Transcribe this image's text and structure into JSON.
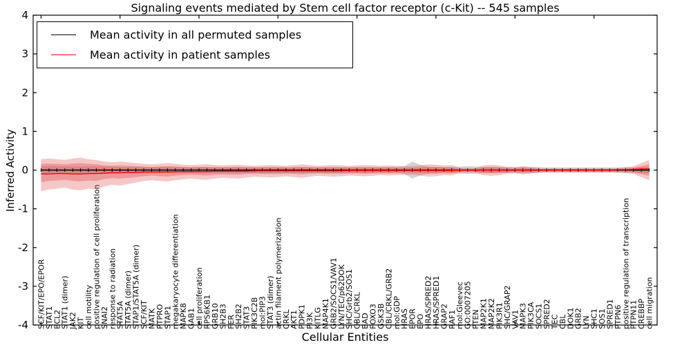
{
  "chart_data": {
    "type": "line",
    "title": "Signaling events mediated by Stem cell factor receptor (c-Kit) -- 545 samples",
    "xlabel": "Cellular Entities",
    "ylabel": "Inferred Activity",
    "ylim": [
      -4,
      4
    ],
    "yticks": [
      4,
      3,
      2,
      1,
      0,
      -1,
      -2,
      -3,
      -4
    ],
    "grid": false,
    "legend_position": "upper-left",
    "legend": [
      {
        "label": "Mean activity in all permuted samples",
        "color": "#000000"
      },
      {
        "label": "Mean activity in patient samples",
        "color": "#ff0000"
      }
    ],
    "categories": [
      "SCF/KIT/EPO/EPOR",
      "STAT1",
      "BCL2",
      "STAT1 (dimer)",
      "JAK2",
      "KIT",
      "cell motility",
      "positive regulation of cell proliferation",
      "SNAI2",
      "response to radiation",
      "STAT5A",
      "STAT5A (dimer)",
      "STAP1/STAT5A (dimer)",
      "SCF/KIT",
      "MATK",
      "PTPRO",
      "STAP1",
      "megakaryocyte differentiation",
      "MAPK8",
      "GAB1",
      "cell proliferation",
      "RPS6KB1",
      "GRB10",
      "SH2B3",
      "FER",
      "SH2B2",
      "STAT3",
      "PIK3C2B",
      "mol:PIP3",
      "STAT3 (dimer)",
      "actin filament polymerization",
      "CRKL",
      "AKT1",
      "PDPK1",
      "PI3K",
      "KITLG",
      "MAP4K1",
      "GRB2/SOCS1/VAV1",
      "LYN/TEC/p62DOK",
      "SHC/Grb2/SOS1",
      "CBL/CRKL",
      "BAD",
      "FOXO3",
      "GSK3B",
      "CBL/CRKL/GRB2",
      "mol:GDP",
      "HRAS",
      "EPOR",
      "EPO",
      "HRAS/SPRED2",
      "HRAS/SPRED1",
      "GRAP2",
      "RAF1",
      "mol:Gleevec",
      "GO:0007205",
      "PTEN",
      "MAP2K1",
      "MAP2K2",
      "PIK3R1",
      "SHC/GRAP2",
      "VAV1",
      "MAPK3",
      "PIK3CA",
      "SOCS1",
      "SPRED2",
      "TEC",
      "CBL",
      "DOK1",
      "GRB2",
      "LYN",
      "SHC1",
      "SOS1",
      "SPRED1",
      "PTPN6",
      "positive regulation of transcription",
      "PTPN11",
      "CREBBP",
      "cell migration"
    ],
    "series": [
      {
        "name": "Mean activity in all permuted samples",
        "color": "#000000",
        "marker": "plus",
        "values": [
          0,
          0,
          0,
          0,
          0,
          0,
          0,
          0,
          0,
          0,
          0,
          0,
          0,
          0,
          0,
          0,
          0,
          0,
          0,
          0,
          0,
          0,
          0,
          0,
          0,
          0,
          0,
          0,
          0,
          0,
          0,
          0,
          0,
          0,
          0,
          0,
          0,
          0,
          0,
          0,
          0,
          0,
          0,
          0,
          0,
          0,
          0,
          0,
          0,
          0,
          0,
          0,
          0,
          0,
          0,
          0,
          0,
          0,
          0,
          0,
          0,
          0,
          0,
          0,
          0,
          0,
          0,
          0,
          0,
          0,
          0,
          0,
          0,
          0,
          0,
          0,
          0,
          0
        ]
      },
      {
        "name": "Mean activity in patient samples",
        "color": "#ff0000",
        "marker": "none",
        "values": [
          -0.1,
          -0.1,
          -0.09,
          -0.09,
          -0.1,
          -0.1,
          -0.09,
          -0.09,
          -0.08,
          -0.07,
          -0.07,
          -0.06,
          -0.06,
          -0.05,
          -0.05,
          -0.05,
          -0.05,
          -0.04,
          -0.04,
          -0.04,
          -0.04,
          -0.04,
          -0.03,
          -0.03,
          -0.03,
          -0.03,
          -0.03,
          -0.02,
          -0.02,
          -0.02,
          -0.02,
          -0.02,
          -0.02,
          -0.02,
          -0.02,
          -0.02,
          -0.02,
          -0.02,
          -0.02,
          -0.01,
          -0.01,
          -0.01,
          -0.01,
          -0.01,
          -0.01,
          -0.01,
          -0.01,
          -0.01,
          -0.01,
          -0.01,
          -0.01,
          -0.01,
          -0.01,
          0,
          0,
          0,
          0,
          0,
          0,
          0,
          0,
          0,
          0,
          0,
          0,
          0,
          0,
          0,
          0,
          0,
          0,
          0,
          0,
          0.01,
          0.01,
          0.02,
          0.03,
          0.03
        ]
      }
    ],
    "bands": [
      {
        "name": "permuted-samples-std",
        "color": "#909090",
        "opacity": 0.4,
        "upper": [
          0.1,
          0.1,
          0.1,
          0.09,
          0.09,
          0.09,
          0.09,
          0.09,
          0.09,
          0.09,
          0.08,
          0.08,
          0.08,
          0.08,
          0.08,
          0.08,
          0.08,
          0.08,
          0.08,
          0.08,
          0.08,
          0.08,
          0.08,
          0.08,
          0.08,
          0.08,
          0.08,
          0.08,
          0.08,
          0.08,
          0.08,
          0.08,
          0.08,
          0.08,
          0.08,
          0.08,
          0.08,
          0.08,
          0.08,
          0.08,
          0.08,
          0.08,
          0.08,
          0.08,
          0.08,
          0.08,
          0.1,
          0.22,
          0.14,
          0.09,
          0.08,
          0.08,
          0.08,
          0.09,
          0.1,
          0.09,
          0.08,
          0.08,
          0.08,
          0.08,
          0.08,
          0.08,
          0.08,
          0.08,
          0.07,
          0.07,
          0.07,
          0.07,
          0.07,
          0.07,
          0.07,
          0.07,
          0.07,
          0.07,
          0.07,
          0.07,
          0.08,
          0.08
        ],
        "lower": [
          -0.1,
          -0.1,
          -0.1,
          -0.09,
          -0.09,
          -0.09,
          -0.09,
          -0.09,
          -0.09,
          -0.09,
          -0.08,
          -0.08,
          -0.08,
          -0.08,
          -0.08,
          -0.08,
          -0.08,
          -0.08,
          -0.08,
          -0.08,
          -0.08,
          -0.08,
          -0.08,
          -0.08,
          -0.08,
          -0.08,
          -0.08,
          -0.08,
          -0.08,
          -0.08,
          -0.08,
          -0.08,
          -0.08,
          -0.08,
          -0.08,
          -0.08,
          -0.08,
          -0.08,
          -0.08,
          -0.08,
          -0.08,
          -0.08,
          -0.08,
          -0.08,
          -0.08,
          -0.08,
          -0.1,
          -0.22,
          -0.14,
          -0.09,
          -0.08,
          -0.08,
          -0.08,
          -0.09,
          -0.1,
          -0.09,
          -0.08,
          -0.08,
          -0.08,
          -0.08,
          -0.08,
          -0.08,
          -0.08,
          -0.08,
          -0.07,
          -0.07,
          -0.07,
          -0.07,
          -0.07,
          -0.07,
          -0.07,
          -0.07,
          -0.07,
          -0.07,
          -0.07,
          -0.07,
          -0.08,
          -0.08
        ]
      },
      {
        "name": "patient-samples-outer-std",
        "color": "#e05050",
        "opacity": 0.32,
        "upper": [
          0.28,
          0.3,
          0.28,
          0.26,
          0.3,
          0.32,
          0.28,
          0.26,
          0.22,
          0.2,
          0.22,
          0.2,
          0.18,
          0.16,
          0.15,
          0.16,
          0.18,
          0.16,
          0.14,
          0.13,
          0.14,
          0.15,
          0.13,
          0.12,
          0.13,
          0.14,
          0.12,
          0.11,
          0.12,
          0.13,
          0.12,
          0.11,
          0.13,
          0.15,
          0.13,
          0.11,
          0.12,
          0.13,
          0.12,
          0.11,
          0.12,
          0.13,
          0.12,
          0.11,
          0.12,
          0.11,
          0.1,
          0.1,
          0.12,
          0.15,
          0.14,
          0.12,
          0.13,
          0.06,
          0.05,
          0.06,
          0.12,
          0.14,
          0.12,
          0.08,
          0.07,
          0.1,
          0.08,
          0.05,
          0.04,
          0.05,
          0.04,
          0.05,
          0.04,
          0.05,
          0.04,
          0.05,
          0.04,
          0.05,
          0.08,
          0.1,
          0.18,
          0.26
        ],
        "lower": [
          -0.55,
          -0.5,
          -0.48,
          -0.45,
          -0.5,
          -0.52,
          -0.48,
          -0.5,
          -0.42,
          -0.38,
          -0.4,
          -0.36,
          -0.32,
          -0.28,
          -0.26,
          -0.28,
          -0.3,
          -0.26,
          -0.24,
          -0.22,
          -0.24,
          -0.25,
          -0.22,
          -0.2,
          -0.21,
          -0.22,
          -0.19,
          -0.17,
          -0.18,
          -0.19,
          -0.18,
          -0.16,
          -0.18,
          -0.2,
          -0.17,
          -0.15,
          -0.16,
          -0.17,
          -0.16,
          -0.14,
          -0.15,
          -0.16,
          -0.15,
          -0.13,
          -0.14,
          -0.13,
          -0.12,
          -0.12,
          -0.14,
          -0.17,
          -0.16,
          -0.13,
          -0.14,
          -0.07,
          -0.06,
          -0.07,
          -0.13,
          -0.15,
          -0.13,
          -0.09,
          -0.08,
          -0.11,
          -0.09,
          -0.06,
          -0.05,
          -0.06,
          -0.05,
          -0.06,
          -0.05,
          -0.06,
          -0.05,
          -0.06,
          -0.05,
          -0.06,
          -0.08,
          -0.1,
          -0.18,
          -0.26
        ]
      },
      {
        "name": "patient-samples-inner-std",
        "color": "#e05050",
        "opacity": 0.38,
        "upper": [
          0.16,
          0.17,
          0.16,
          0.15,
          0.17,
          0.18,
          0.16,
          0.15,
          0.12,
          0.11,
          0.12,
          0.11,
          0.1,
          0.09,
          0.08,
          0.09,
          0.1,
          0.09,
          0.08,
          0.07,
          0.08,
          0.08,
          0.07,
          0.07,
          0.07,
          0.08,
          0.07,
          0.06,
          0.07,
          0.07,
          0.07,
          0.06,
          0.07,
          0.08,
          0.07,
          0.06,
          0.07,
          0.07,
          0.07,
          0.06,
          0.07,
          0.07,
          0.07,
          0.06,
          0.07,
          0.06,
          0.06,
          0.06,
          0.07,
          0.08,
          0.08,
          0.07,
          0.07,
          0.03,
          0.03,
          0.03,
          0.07,
          0.08,
          0.07,
          0.04,
          0.04,
          0.06,
          0.04,
          0.03,
          0.02,
          0.03,
          0.02,
          0.03,
          0.02,
          0.03,
          0.02,
          0.03,
          0.02,
          0.03,
          0.04,
          0.06,
          0.1,
          0.15
        ],
        "lower": [
          -0.31,
          -0.28,
          -0.27,
          -0.25,
          -0.28,
          -0.29,
          -0.27,
          -0.28,
          -0.23,
          -0.21,
          -0.22,
          -0.2,
          -0.18,
          -0.16,
          -0.14,
          -0.16,
          -0.17,
          -0.14,
          -0.13,
          -0.12,
          -0.13,
          -0.14,
          -0.12,
          -0.11,
          -0.12,
          -0.12,
          -0.1,
          -0.09,
          -0.1,
          -0.1,
          -0.1,
          -0.09,
          -0.1,
          -0.11,
          -0.09,
          -0.08,
          -0.09,
          -0.09,
          -0.09,
          -0.08,
          -0.08,
          -0.09,
          -0.08,
          -0.07,
          -0.08,
          -0.07,
          -0.07,
          -0.07,
          -0.08,
          -0.09,
          -0.09,
          -0.07,
          -0.08,
          -0.04,
          -0.03,
          -0.04,
          -0.07,
          -0.08,
          -0.07,
          -0.05,
          -0.04,
          -0.06,
          -0.05,
          -0.03,
          -0.03,
          -0.03,
          -0.03,
          -0.03,
          -0.03,
          -0.03,
          -0.03,
          -0.03,
          -0.03,
          -0.03,
          -0.04,
          -0.06,
          -0.1,
          -0.15
        ]
      }
    ]
  }
}
